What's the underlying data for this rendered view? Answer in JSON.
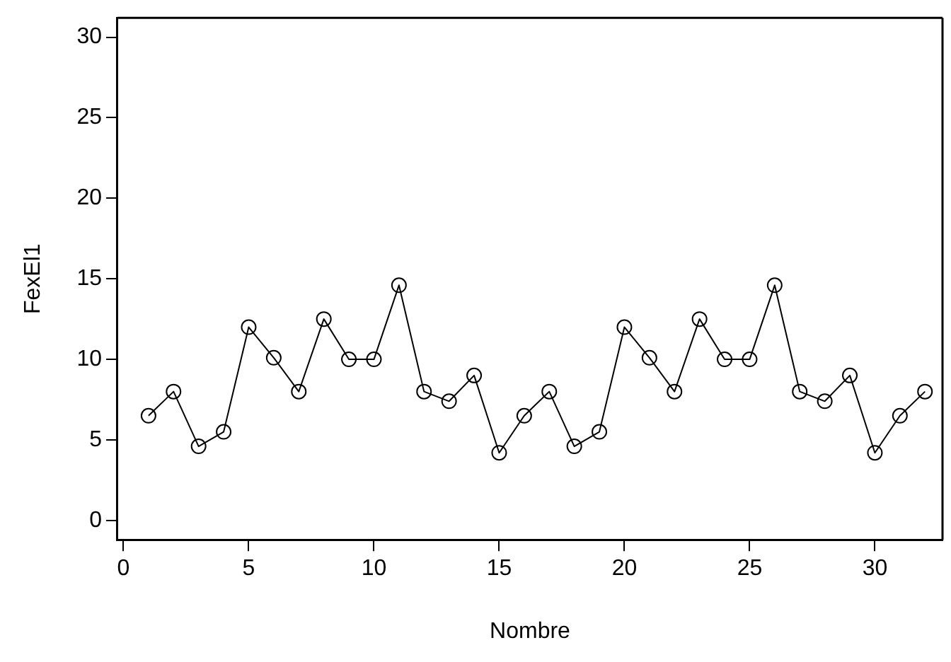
{
  "chart_data": {
    "type": "line",
    "xlabel": "Nombre",
    "ylabel": "FexEl1",
    "x": [
      1,
      2,
      3,
      4,
      5,
      6,
      7,
      8,
      9,
      10,
      11,
      12,
      13,
      14,
      15,
      16,
      17,
      18,
      19,
      20,
      21,
      22,
      23,
      24,
      25,
      26,
      27,
      28,
      29,
      30,
      31,
      32
    ],
    "values": [
      6.5,
      8,
      4.6,
      5.5,
      12,
      10.1,
      8,
      12.5,
      10,
      10,
      14.6,
      8,
      7.4,
      9,
      4.2,
      6.5,
      8,
      4.6,
      5.5,
      12,
      10.1,
      8,
      12.5,
      10,
      10,
      14.6,
      8,
      7.4,
      9,
      4.2,
      6.5,
      8
    ],
    "color": "#000000",
    "marker": "circle",
    "line_style": "solid",
    "grid": false,
    "legend": false,
    "xlim": [
      -0.24,
      32.7
    ],
    "ylim": [
      -1.2,
      31.2
    ],
    "xticks": [
      0,
      5,
      10,
      15,
      20,
      25,
      30
    ],
    "yticks": [
      0,
      5,
      10,
      15,
      20,
      25,
      30
    ]
  }
}
